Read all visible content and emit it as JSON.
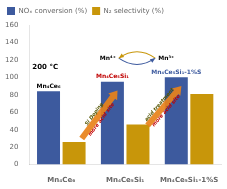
{
  "chart_data": {
    "type": "bar",
    "categories": [
      "Mn₄Ce₆",
      "Mn₄Ce₅Si₁",
      "Mn₄Ce₅Si₁-1%S"
    ],
    "series": [
      {
        "name": "NOₓ conversion (%)",
        "color": "#3d5a9e",
        "values": [
          84,
          95,
          100
        ]
      },
      {
        "name": "N₂ selectivity (%)",
        "color": "#c8960a",
        "values": [
          26,
          46,
          81
        ]
      }
    ],
    "ylim": [
      0,
      160
    ],
    "yticks": [
      0,
      20,
      40,
      60,
      80,
      100,
      120,
      140,
      160
    ],
    "grid": false,
    "legend": "upper left",
    "annotations": [
      {
        "text": "200 °C",
        "color": "#000000"
      },
      {
        "text": "Si Doping",
        "color": "#555500"
      },
      {
        "text": "more acid site",
        "color": "#c00000"
      },
      {
        "text": "acid treatment",
        "color": "#555500"
      },
      {
        "text": "more acid site",
        "color": "#c00000"
      },
      {
        "text": "Mn⁴⁺",
        "color": "#000000"
      },
      {
        "text": "Mn³⁺",
        "color": "#000000"
      },
      {
        "text": "Mn₄Ce₆",
        "color": "#000000"
      },
      {
        "text": "Mn₄Ce₅Si₁",
        "color": "#c00000"
      },
      {
        "text": "Mn₄Ce₅Si₁-1%S",
        "color": "#3d5a9e"
      }
    ]
  }
}
